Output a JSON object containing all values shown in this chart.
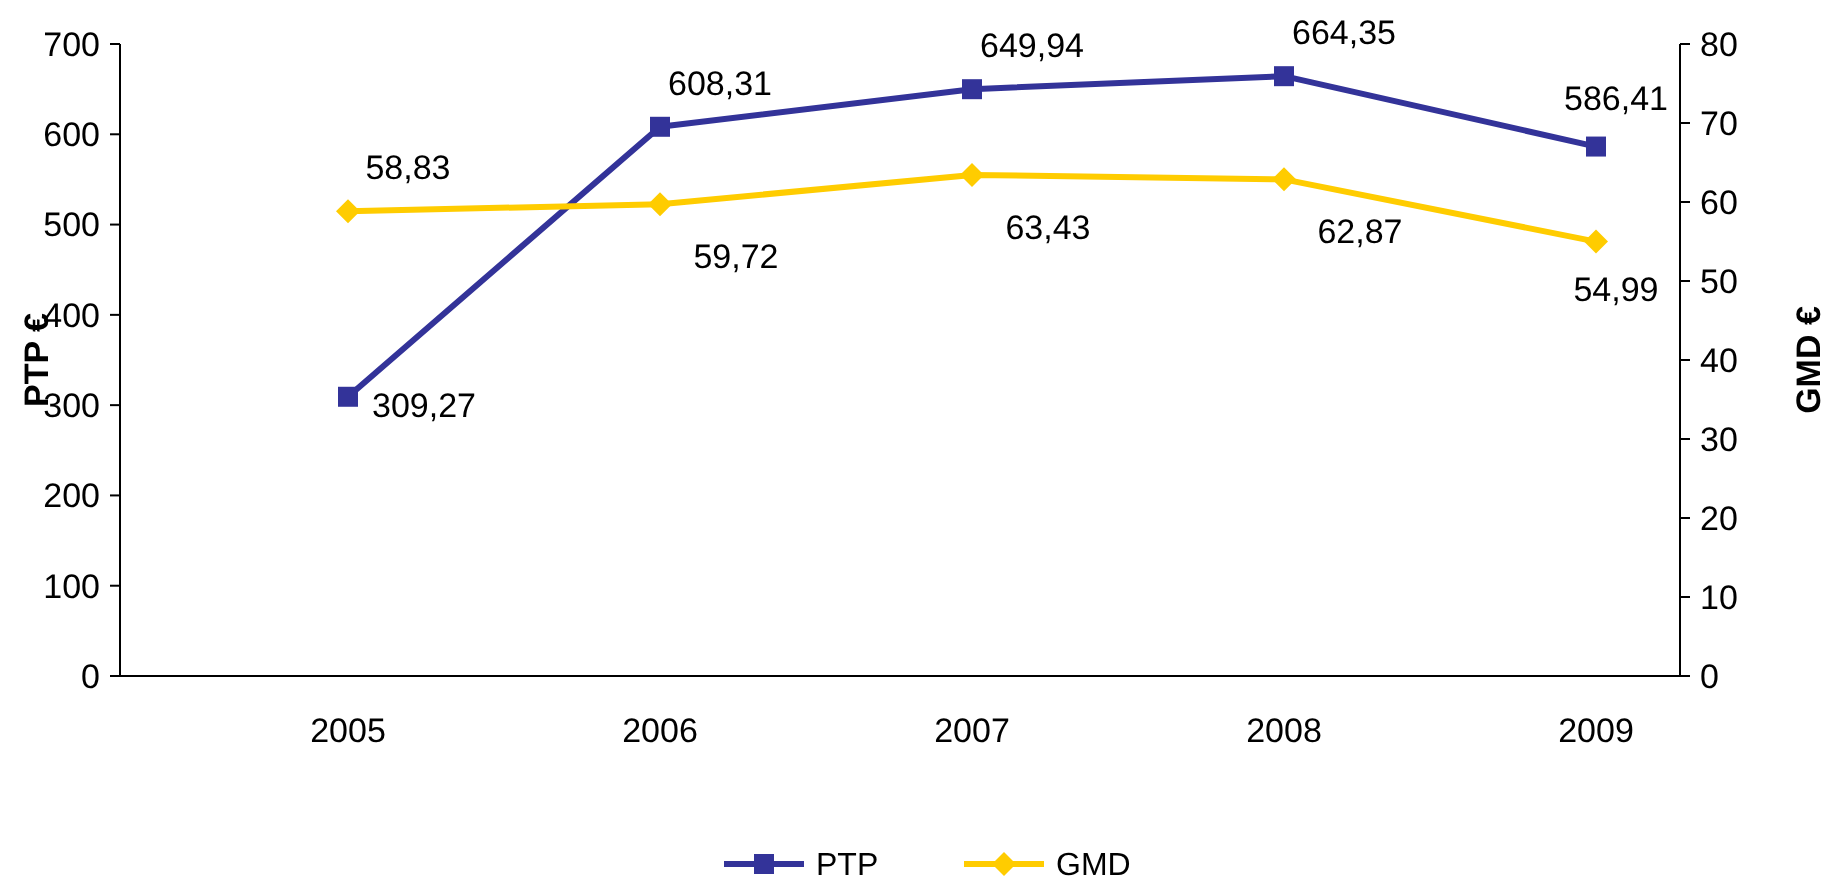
{
  "chart_data": {
    "type": "line",
    "categories": [
      "2005",
      "2006",
      "2007",
      "2008",
      "2009"
    ],
    "ylabel": "PTP €",
    "y2label": "GMD €",
    "ylim": [
      0,
      700
    ],
    "yticks": [
      0,
      100,
      200,
      300,
      400,
      500,
      600,
      700
    ],
    "y2lim": [
      0,
      80
    ],
    "y2ticks": [
      0,
      10,
      20,
      30,
      40,
      50,
      60,
      70,
      80
    ],
    "legend": "bottom",
    "grid": false,
    "line_style": "solid",
    "series": [
      {
        "name": "PTP",
        "color": "#333399",
        "marker": "square",
        "values": [
          309.27,
          608.31,
          649.94,
          664.35,
          586.41
        ],
        "value_labels": [
          "309,27",
          "608,31",
          "649,94",
          "664,35",
          "586,41"
        ]
      },
      {
        "name": "GMD",
        "color": "#ffcc00",
        "marker": "diamond",
        "axis": "y2",
        "values": [
          58.83,
          59.72,
          63.43,
          62.87,
          54.99
        ],
        "value_labels": [
          "58,83",
          "59,72",
          "63,43",
          "62,87",
          "54,99"
        ]
      }
    ]
  }
}
